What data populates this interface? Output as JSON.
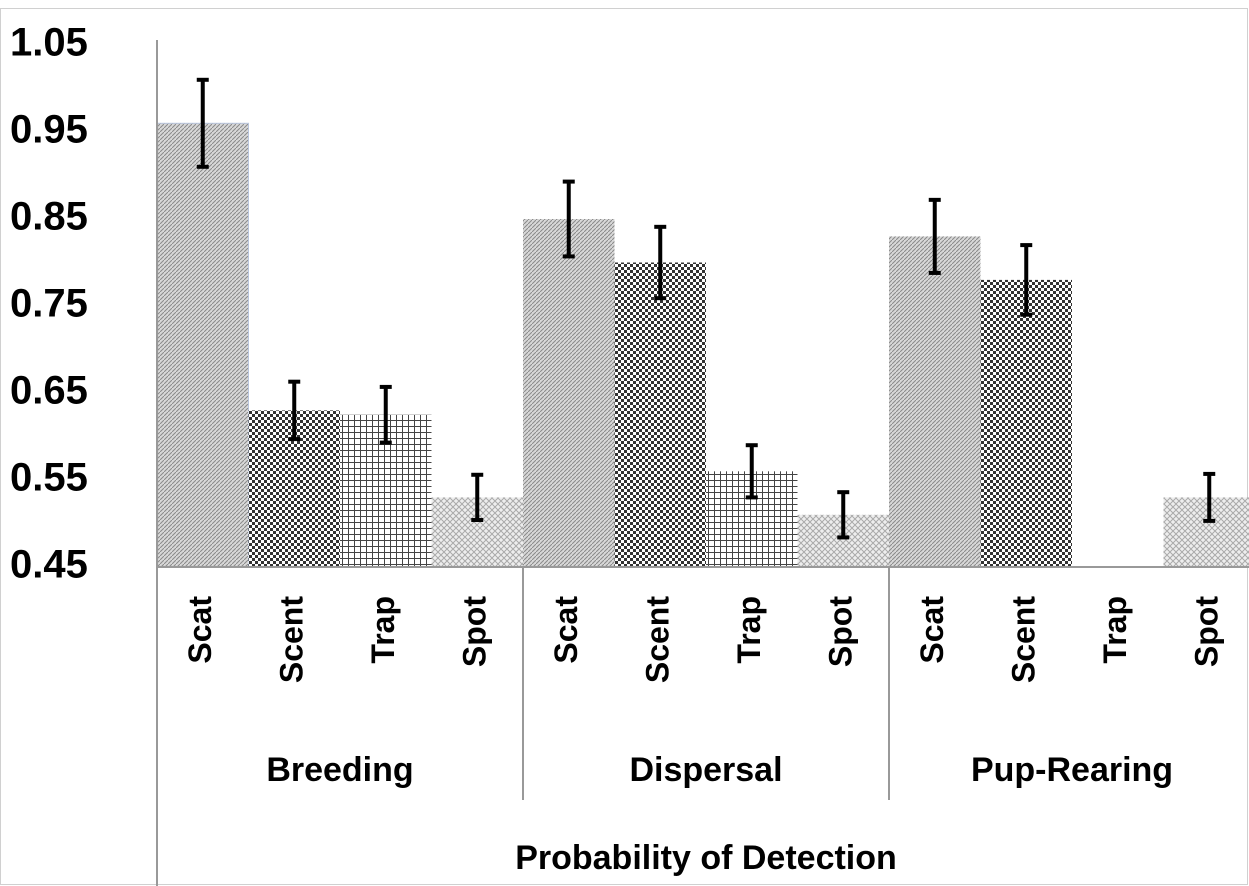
{
  "chart_data": {
    "type": "bar",
    "xlabel": "Probability of Detection",
    "groups": [
      "Breeding",
      "Dispersal",
      "Pup-Rearing"
    ],
    "categories": [
      "Scat",
      "Scent",
      "Trap",
      "Spot",
      "Scat",
      "Scent",
      "Trap",
      "Spot",
      "Scat",
      "Scent",
      "Trap",
      "Spot"
    ],
    "values": [
      0.96,
      0.63,
      0.625,
      0.53,
      0.85,
      0.8,
      0.56,
      0.51,
      0.83,
      0.78,
      0.45,
      0.53
    ],
    "errors": [
      0.05,
      0.033,
      0.032,
      0.026,
      0.043,
      0.041,
      0.03,
      0.026,
      0.042,
      0.04,
      null,
      0.027
    ],
    "color": "#888888",
    "ylim": [
      0.45,
      1.05
    ],
    "yticks": [
      0.45,
      0.55,
      0.65,
      0.75,
      0.85,
      0.95,
      1.05
    ],
    "grid": false
  }
}
